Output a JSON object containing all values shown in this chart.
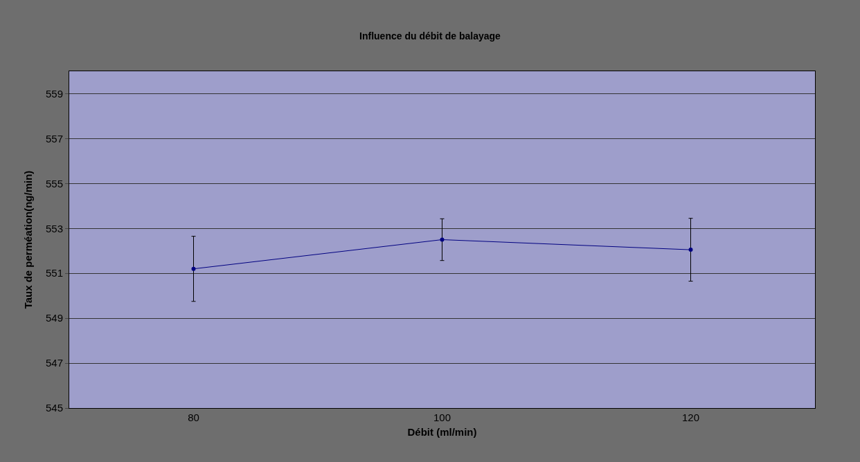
{
  "chart_data": {
    "type": "line",
    "title": "Influence du débit de balayage",
    "xlabel": "Débit (ml/min)",
    "ylabel": "Taux de perméation(ng/min)",
    "categories": [
      "80",
      "100",
      "120"
    ],
    "series": [
      {
        "color": "#000080",
        "values": [
          551.2,
          552.5,
          552.05
        ],
        "errors": [
          1.45,
          0.93,
          1.4
        ]
      }
    ],
    "ylim": [
      545,
      560
    ],
    "yticks": [
      545,
      547,
      549,
      551,
      553,
      555,
      557,
      559
    ],
    "grid": "y",
    "marker": "circle",
    "line_style": "solid"
  }
}
